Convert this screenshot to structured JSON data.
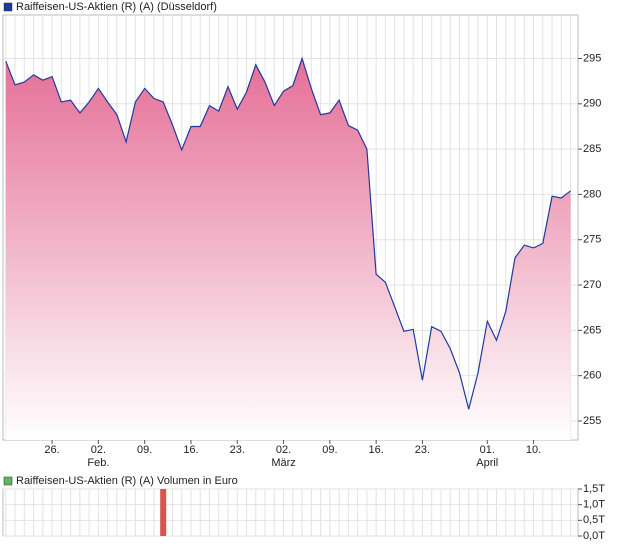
{
  "chart_data": [
    {
      "type": "area",
      "series": [
        {
          "name": "Raiffeisen-US-Aktien (R) (A) (Düsseldorf)",
          "color": "#1f3a9c",
          "fill": "#e56f97",
          "values": [
            294.7,
            292.1,
            292.4,
            293.2,
            292.6,
            293.0,
            290.2,
            290.4,
            289.0,
            290.2,
            291.7,
            290.2,
            288.8,
            285.8,
            290.2,
            291.7,
            290.6,
            290.2,
            287.7,
            284.9,
            287.5,
            287.5,
            289.8,
            289.2,
            291.9,
            289.4,
            291.3,
            294.3,
            292.4,
            289.8,
            291.4,
            292.0,
            295.0,
            291.7,
            288.8,
            289.0,
            290.4,
            287.6,
            287.1,
            285.0,
            271.2,
            270.3,
            267.6,
            264.9,
            265.1,
            259.5,
            265.4,
            264.9,
            263.0,
            260.3,
            256.3,
            260.3,
            266.0,
            263.9,
            267.1,
            273.0,
            274.4,
            274.1,
            274.6,
            279.8,
            279.6,
            280.4
          ]
        }
      ],
      "xlim": [
        -0.3,
        61.8
      ],
      "xticks": [
        {
          "value": 5,
          "label": "26."
        },
        {
          "value": 10,
          "label": "02."
        },
        {
          "value": 15,
          "label": "09."
        },
        {
          "value": 20,
          "label": "16."
        },
        {
          "value": 25,
          "label": "23."
        },
        {
          "value": 30,
          "label": "02."
        },
        {
          "value": 35,
          "label": "09."
        },
        {
          "value": 40,
          "label": "16."
        },
        {
          "value": 45,
          "label": "23."
        },
        {
          "value": 52,
          "label": "01."
        },
        {
          "value": 57,
          "label": "10."
        }
      ],
      "month_labels": [
        {
          "value": 10,
          "label": "Feb."
        },
        {
          "value": 30,
          "label": "März"
        },
        {
          "value": 52,
          "label": "April"
        }
      ],
      "ylim": [
        252.9,
        299.8
      ],
      "yticks": [
        255,
        260,
        265,
        270,
        275,
        280,
        285,
        290,
        295
      ],
      "grid": true
    },
    {
      "type": "bar",
      "series": [
        {
          "name": "Raiffeisen-US-Aktien (R) (A) Volumen in Euro",
          "color": "#d9534f",
          "legend_color": "#5cb85c",
          "values": [
            0,
            0,
            0,
            0,
            0,
            0,
            0,
            0,
            0,
            0,
            0,
            0,
            0,
            0,
            0,
            0,
            0,
            1.5,
            0,
            0,
            0,
            0,
            0,
            0,
            0,
            0,
            0,
            0,
            0,
            0,
            0,
            0,
            0,
            0,
            0,
            0,
            0,
            0,
            0,
            0,
            0,
            0,
            0,
            0,
            0,
            0,
            0,
            0,
            0,
            0,
            0,
            0,
            0,
            0,
            0,
            0,
            0,
            0,
            0,
            0,
            0,
            0
          ]
        }
      ],
      "xlim": [
        -0.3,
        61.8
      ],
      "ylim": [
        0,
        1.5
      ],
      "yticks": [
        {
          "value": 0,
          "label": "0,0T"
        },
        {
          "value": 0.5,
          "label": "0,5T"
        },
        {
          "value": 1.0,
          "label": "1,0T"
        },
        {
          "value": 1.5,
          "label": "1,5T"
        }
      ],
      "grid": true
    }
  ]
}
